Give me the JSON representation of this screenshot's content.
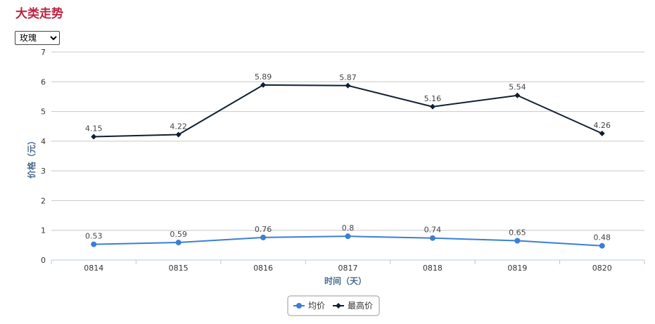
{
  "page": {
    "title": "大类走势"
  },
  "selector": {
    "selected": "玫瑰",
    "options": [
      "玫瑰"
    ]
  },
  "chart_data": {
    "type": "line",
    "xlabel": "时间（天）",
    "ylabel": "价格（元）",
    "categories": [
      "0814",
      "0815",
      "0816",
      "0817",
      "0818",
      "0819",
      "0820"
    ],
    "ylim": [
      0,
      7
    ],
    "yticks": [
      0,
      1,
      2,
      3,
      4,
      5,
      6,
      7
    ],
    "grid": true,
    "legend_position": "bottom-center",
    "series": [
      {
        "name": "均价",
        "values": [
          0.53,
          0.59,
          0.76,
          0.8,
          0.74,
          0.65,
          0.48
        ],
        "labels": [
          "0.53",
          "0.59",
          "0.76",
          "0.8",
          "0.74",
          "0.65",
          "0.48"
        ],
        "color": "#3a7fd5",
        "marker": "circle"
      },
      {
        "name": "最高价",
        "values": [
          4.15,
          4.22,
          5.89,
          5.87,
          5.16,
          5.54,
          4.26
        ],
        "labels": [
          "4.15",
          "4.22",
          "5.89",
          "5.87",
          "5.16",
          "5.54",
          "4.26"
        ],
        "color": "#0f1f33",
        "marker": "diamond"
      }
    ]
  }
}
